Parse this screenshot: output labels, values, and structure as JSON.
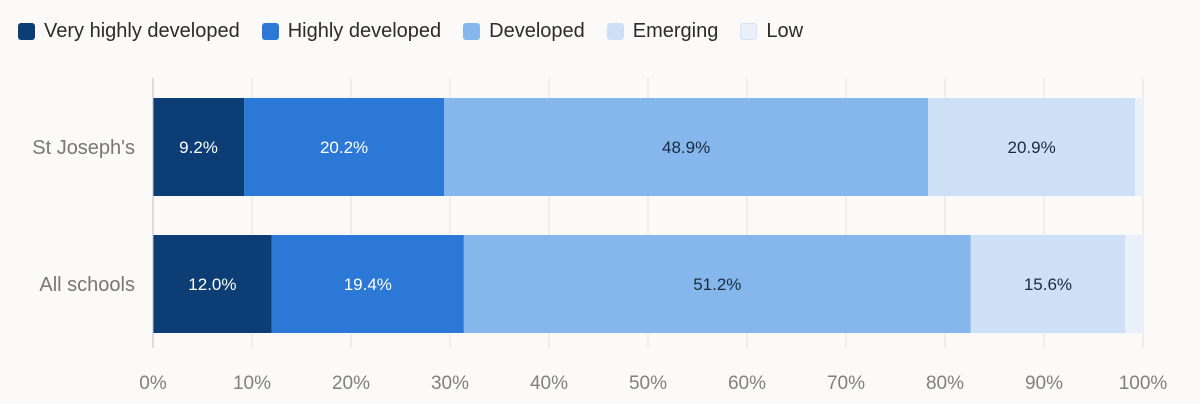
{
  "chart_data": {
    "type": "bar",
    "orientation": "horizontal",
    "stacked": true,
    "categories": [
      "St Joseph's",
      "All schools"
    ],
    "series": [
      {
        "name": "Very highly developed",
        "color": "#0d3d75",
        "label_color": "#ffffff",
        "values": [
          9.2,
          12.0
        ],
        "labels": [
          "9.2%",
          "12.0%"
        ]
      },
      {
        "name": "Highly developed",
        "color": "#2b78d6",
        "label_color": "#ffffff",
        "values": [
          20.2,
          19.4
        ],
        "labels": [
          "20.2%",
          "19.4%"
        ]
      },
      {
        "name": "Developed",
        "color": "#85b6ec",
        "label_color": "#1a2b40",
        "values": [
          48.9,
          51.2
        ],
        "labels": [
          "48.9%",
          "51.2%"
        ]
      },
      {
        "name": "Emerging",
        "color": "#cde0f6",
        "label_color": "#1a2b40",
        "values": [
          20.9,
          15.6
        ],
        "labels": [
          "20.9%",
          "15.6%"
        ]
      },
      {
        "name": "Low",
        "color": "#e9f0f9",
        "label_color": "#1a2b40",
        "values": [
          0.8,
          1.8
        ],
        "labels": [
          "",
          ""
        ]
      }
    ],
    "xlim": [
      0,
      100
    ],
    "x_ticks": [
      0,
      10,
      20,
      30,
      40,
      50,
      60,
      70,
      80,
      90,
      100
    ],
    "x_tick_labels": [
      "0%",
      "10%",
      "20%",
      "30%",
      "40%",
      "50%",
      "60%",
      "70%",
      "80%",
      "90%",
      "100%"
    ],
    "grid": true,
    "legend": "top-left",
    "xlabel": "",
    "ylabel": "",
    "title": ""
  }
}
